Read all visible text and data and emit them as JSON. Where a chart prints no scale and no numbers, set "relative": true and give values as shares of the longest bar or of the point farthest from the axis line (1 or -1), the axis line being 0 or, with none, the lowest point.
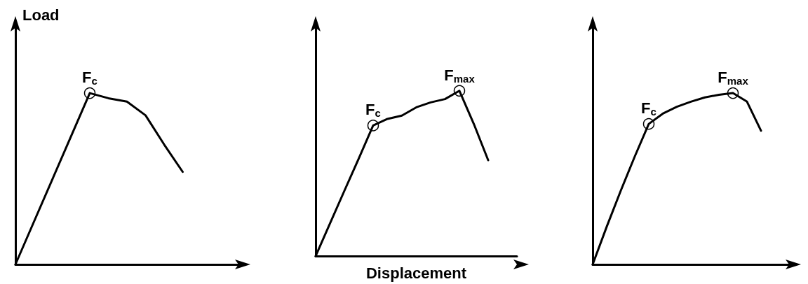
{
  "chart_data": [
    {
      "type": "line",
      "relative": true,
      "ylabel": "Load",
      "marker": "none",
      "categories": [
        null,
        null,
        null,
        null,
        null,
        null,
        null,
        null,
        null,
        null,
        null,
        null,
        null
      ],
      "series": [
        {
          "color": "#000000",
          "values": [
            0,
            0.25,
            0.5,
            0.75,
            1,
            0.97,
            0.95,
            0.87,
            0.7,
            0.54,
            null,
            null,
            null
          ]
        }
      ],
      "annotations": [
        {
          "text": "F$_{c}$",
          "y": 1
        }
      ]
    },
    {
      "type": "line",
      "relative": true,
      "xlabel": "Displacement",
      "marker": "none",
      "categories": [
        null,
        null,
        null,
        null,
        null,
        null,
        null,
        null,
        null,
        null,
        null,
        null,
        null,
        null,
        null
      ],
      "series": [
        {
          "color": "#000000",
          "values": [
            0,
            0.198,
            0.395,
            0.59,
            0.79,
            0.83,
            0.85,
            0.9,
            0.93,
            0.95,
            1,
            0.8,
            0.58,
            null,
            null
          ]
        }
      ],
      "annotations": [
        {
          "text": "F$_{c}$",
          "y": 0.79
        },
        {
          "text": "F$_{max}$",
          "y": 1
        }
      ]
    },
    {
      "type": "line",
      "relative": true,
      "marker": "none",
      "categories": [
        null,
        null,
        null,
        null,
        null,
        null,
        null,
        null,
        null,
        null,
        null,
        null,
        null,
        null,
        null
      ],
      "series": [
        {
          "color": "#000000",
          "values": [
            0,
            0.22,
            0.43,
            0.63,
            0.82,
            0.88,
            0.92,
            0.95,
            0.975,
            0.99,
            1,
            0.95,
            0.78,
            null,
            null
          ]
        }
      ],
      "annotations": [
        {
          "text": "F$_{c}$",
          "y": 0.82
        },
        {
          "text": "F$_{max}$",
          "y": 1
        }
      ]
    }
  ]
}
